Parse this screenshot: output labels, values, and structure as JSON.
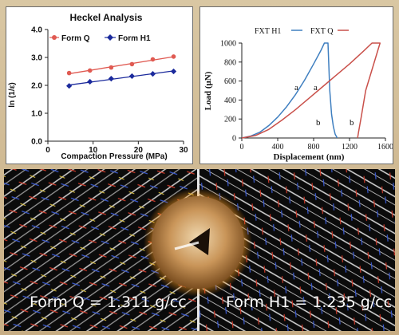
{
  "chart_data": [
    {
      "type": "scatter",
      "title": "Heckel  Analysis",
      "xlabel": "Compaction Pressure (MPa)",
      "ylabel": "ln (1/ε)",
      "xlim": [
        0,
        30
      ],
      "ylim": [
        0.0,
        4.0
      ],
      "xticks": [
        0,
        10,
        20,
        30
      ],
      "yticks": [
        "0.0",
        "1.0",
        "2.0",
        "3.0",
        "4.0"
      ],
      "grid": false,
      "legend": "top",
      "series": [
        {
          "name": "Form Q",
          "color": "#e05a52",
          "marker": "circle",
          "x": [
            4.7,
            9.3,
            14,
            18.6,
            23.2,
            27.8
          ],
          "y": [
            2.44,
            2.53,
            2.64,
            2.76,
            2.93,
            3.03
          ]
        },
        {
          "name": "Form H1",
          "color": "#1b2a9c",
          "marker": "diamond",
          "x": [
            4.7,
            9.3,
            14,
            18.6,
            23.2,
            27.8
          ],
          "y": [
            1.98,
            2.13,
            2.24,
            2.33,
            2.41,
            2.5
          ]
        }
      ]
    },
    {
      "type": "line",
      "xlabel": "Displacement (nm)",
      "ylabel": "Load (μN)",
      "xlim": [
        0,
        1600
      ],
      "ylim": [
        0,
        1000
      ],
      "xticks": [
        0,
        400,
        800,
        1200,
        1600
      ],
      "yticks": [
        0,
        200,
        400,
        600,
        800,
        1000
      ],
      "legend": "top",
      "series": [
        {
          "name": "FXT H1",
          "color": "#3f7fc0",
          "x": [
            0,
            100,
            200,
            300,
            400,
            500,
            600,
            700,
            800,
            880,
            920,
            960,
            980,
            1000,
            1020,
            1040,
            1060,
            1060
          ],
          "y": [
            0,
            20,
            60,
            130,
            220,
            330,
            460,
            610,
            780,
            920,
            1000,
            1000,
            500,
            250,
            120,
            40,
            5,
            0
          ]
        },
        {
          "name": "FXT Q",
          "color": "#c9504a",
          "x": [
            0,
            150,
            300,
            450,
            600,
            750,
            900,
            1050,
            1200,
            1350,
            1450,
            1500,
            1540,
            1380,
            1330,
            1300,
            1290
          ],
          "y": [
            0,
            25,
            90,
            190,
            300,
            420,
            540,
            660,
            780,
            910,
            1000,
            1000,
            1000,
            500,
            220,
            60,
            0
          ]
        }
      ],
      "annotations": [
        "a",
        "a",
        "b",
        "b"
      ]
    }
  ],
  "captions": {
    "form_q": "Form Q = 1.311 g/cc",
    "form_h1": "Form  H1 = 1.235 g/cc"
  }
}
